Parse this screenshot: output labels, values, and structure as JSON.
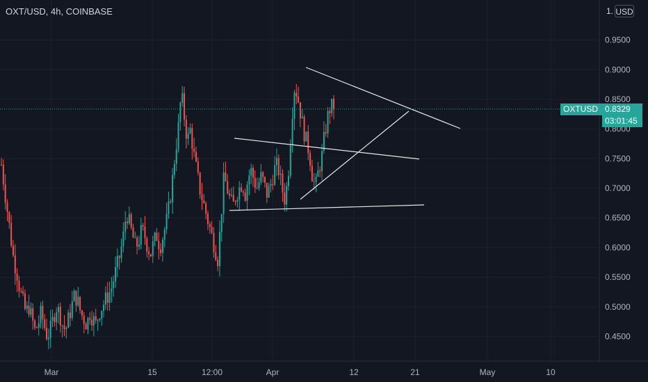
{
  "header": {
    "symbol_title": "OXT/USD, 4h, COINBASE"
  },
  "price_axis": {
    "currency": "USD",
    "top_partial_label": "1.",
    "current_symbol": "OXTUSD",
    "current_price": "0.8329",
    "countdown": "03:01:45",
    "accent_color": "#26a69a"
  },
  "chart_data": {
    "type": "candlestick",
    "title": "OXT/USD, 4h, COINBASE",
    "up_color": "#26a69a",
    "down_color": "#ef5350",
    "y_ticks": [
      0.45,
      0.5,
      0.55,
      0.6,
      0.65,
      0.7,
      0.75,
      0.8,
      0.85,
      0.9,
      0.95
    ],
    "y_tick_labels": [
      "0.4500",
      "0.5000",
      "0.5500",
      "0.6000",
      "0.6500",
      "0.7000",
      "0.7500",
      "0.8000",
      "0.8500",
      "0.9000",
      "0.9500"
    ],
    "ylim": [
      0.415,
      1.0
    ],
    "x_tick_labels": [
      "Mar",
      "15",
      "12:00",
      "Apr",
      "12",
      "21",
      "May",
      "10"
    ],
    "grid": true,
    "close_series": [
      0.74,
      0.7,
      0.66,
      0.62,
      0.58,
      0.56,
      0.53,
      0.51,
      0.49,
      0.5,
      0.48,
      0.46,
      0.47,
      0.49,
      0.47,
      0.45,
      0.46,
      0.48,
      0.5,
      0.49,
      0.47,
      0.46,
      0.48,
      0.5,
      0.52,
      0.51,
      0.49,
      0.48,
      0.47,
      0.49,
      0.48,
      0.47,
      0.49,
      0.5,
      0.51,
      0.52,
      0.53,
      0.55,
      0.57,
      0.59,
      0.62,
      0.66,
      0.64,
      0.62,
      0.6,
      0.61,
      0.63,
      0.62,
      0.6,
      0.59,
      0.61,
      0.62,
      0.6,
      0.62,
      0.64,
      0.67,
      0.71,
      0.76,
      0.8,
      0.86,
      0.82,
      0.78,
      0.8,
      0.76,
      0.73,
      0.7,
      0.68,
      0.66,
      0.64,
      0.62,
      0.6,
      0.58,
      0.65,
      0.72,
      0.7,
      0.68,
      0.67,
      0.69,
      0.7,
      0.71,
      0.69,
      0.72,
      0.73,
      0.71,
      0.7,
      0.72,
      0.71,
      0.69,
      0.7,
      0.72,
      0.74,
      0.73,
      0.7,
      0.68,
      0.72,
      0.8,
      0.87,
      0.86,
      0.83,
      0.8,
      0.78,
      0.76,
      0.72,
      0.7,
      0.73,
      0.75,
      0.79,
      0.82,
      0.84,
      0.8329
    ],
    "last_price": 0.8329
  }
}
